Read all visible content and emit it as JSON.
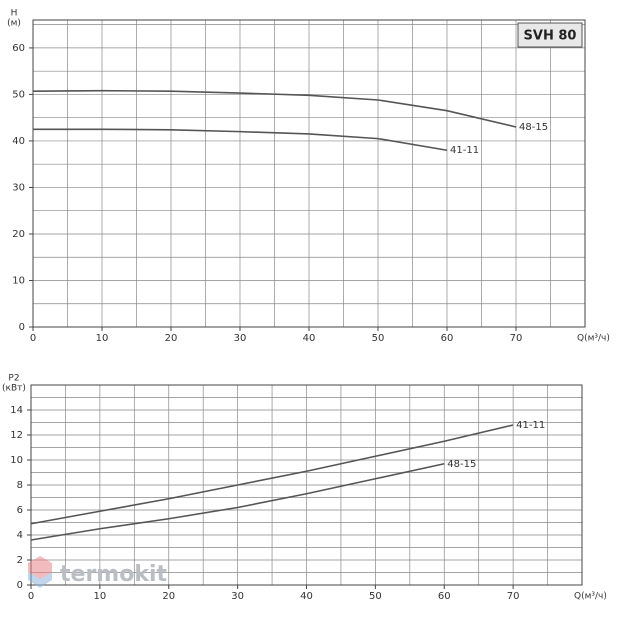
{
  "chart_data": [
    {
      "type": "line",
      "title": "SVH 80",
      "ylabel": [
        "H",
        "(м)"
      ],
      "xlabel": "Q(м³/ч)",
      "x": [
        0,
        10,
        20,
        30,
        40,
        50,
        60,
        70
      ],
      "series": [
        {
          "name": "48-15",
          "color": "#555555",
          "values": [
            50.7,
            50.8,
            50.7,
            50.3,
            49.8,
            48.8,
            46.5,
            43
          ]
        },
        {
          "name": "41-11",
          "color": "#555555",
          "values": [
            42.5,
            42.5,
            42.4,
            42,
            41.5,
            40.5,
            38,
            null
          ]
        }
      ],
      "xlim": [
        0,
        80
      ],
      "xticks": [
        0,
        10,
        20,
        30,
        40,
        50,
        60,
        70
      ],
      "ylim": [
        0,
        66
      ],
      "yticks": [
        0,
        10,
        20,
        30,
        40,
        50,
        60
      ],
      "grid": true,
      "grid_step_x": 5,
      "grid_step_y": 5
    },
    {
      "type": "line",
      "ylabel": [
        "P2",
        "(кВт)"
      ],
      "xlabel": "Q(м³/ч)",
      "x": [
        0,
        10,
        20,
        30,
        40,
        50,
        60,
        70
      ],
      "series": [
        {
          "name": "41-11",
          "color": "#555555",
          "values": [
            4.9,
            5.9,
            6.9,
            8.0,
            9.1,
            10.3,
            11.5,
            12.8
          ]
        },
        {
          "name": "48-15",
          "color": "#555555",
          "values": [
            3.6,
            4.5,
            5.3,
            6.2,
            7.3,
            8.5,
            9.7,
            null
          ]
        }
      ],
      "xlim": [
        0,
        80
      ],
      "xticks": [
        0,
        10,
        20,
        30,
        40,
        50,
        60,
        70
      ],
      "ylim": [
        0,
        16
      ],
      "yticks": [
        0,
        2,
        4,
        6,
        8,
        10,
        12,
        14
      ],
      "grid": true,
      "grid_step_x": 5,
      "grid_step_y": 1
    }
  ],
  "watermark": "termokit"
}
